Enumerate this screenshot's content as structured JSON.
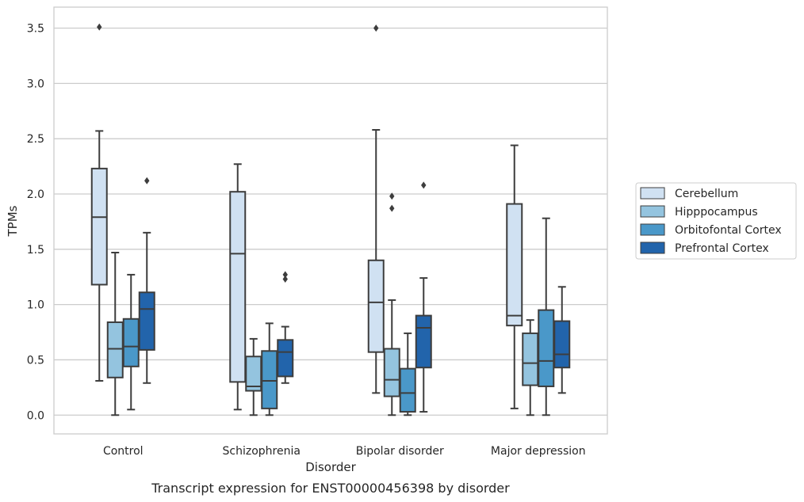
{
  "chart_data": {
    "type": "box",
    "xlabel": "Disorder",
    "ylabel": "TPMs",
    "caption": "Transcript expression for ENST00000456398 by disorder",
    "ylim": [
      -0.17,
      3.69
    ],
    "yticks": [
      "0.0",
      "0.5",
      "1.0",
      "1.5",
      "2.0",
      "2.5",
      "3.0",
      "3.5"
    ],
    "grid": "horizontal",
    "legend_position": "right",
    "categories": [
      "Control",
      "Schizophrenia",
      "Bipolar disorder",
      "Major depression"
    ],
    "series": [
      {
        "name": "Cerebellum",
        "color": "#d0e1f2",
        "boxes": [
          {
            "whisker_low": 0.31,
            "q1": 1.18,
            "median": 1.79,
            "q3": 2.23,
            "whisker_high": 2.57,
            "outliers": [
              3.51
            ]
          },
          {
            "whisker_low": 0.05,
            "q1": 0.3,
            "median": 1.46,
            "q3": 2.02,
            "whisker_high": 2.27,
            "outliers": []
          },
          {
            "whisker_low": 0.2,
            "q1": 0.57,
            "median": 1.02,
            "q3": 1.4,
            "whisker_high": 2.58,
            "outliers": [
              3.5
            ]
          },
          {
            "whisker_low": 0.06,
            "q1": 0.81,
            "median": 0.9,
            "q3": 1.91,
            "whisker_high": 2.44,
            "outliers": []
          }
        ]
      },
      {
        "name": "Hipppocampus",
        "color": "#94c4df",
        "boxes": [
          {
            "whisker_low": 0.0,
            "q1": 0.34,
            "median": 0.6,
            "q3": 0.84,
            "whisker_high": 1.47,
            "outliers": []
          },
          {
            "whisker_low": 0.0,
            "q1": 0.22,
            "median": 0.26,
            "q3": 0.53,
            "whisker_high": 0.69,
            "outliers": []
          },
          {
            "whisker_low": 0.0,
            "q1": 0.17,
            "median": 0.32,
            "q3": 0.6,
            "whisker_high": 1.04,
            "outliers": [
              1.87,
              1.98
            ]
          },
          {
            "whisker_low": 0.0,
            "q1": 0.27,
            "median": 0.47,
            "q3": 0.74,
            "whisker_high": 0.86,
            "outliers": []
          }
        ]
      },
      {
        "name": "Orbitofontal Cortex",
        "color": "#4a98c9",
        "boxes": [
          {
            "whisker_low": 0.05,
            "q1": 0.44,
            "median": 0.62,
            "q3": 0.87,
            "whisker_high": 1.27,
            "outliers": []
          },
          {
            "whisker_low": 0.0,
            "q1": 0.06,
            "median": 0.31,
            "q3": 0.58,
            "whisker_high": 0.83,
            "outliers": []
          },
          {
            "whisker_low": 0.0,
            "q1": 0.03,
            "median": 0.2,
            "q3": 0.42,
            "whisker_high": 0.74,
            "outliers": []
          },
          {
            "whisker_low": 0.0,
            "q1": 0.26,
            "median": 0.49,
            "q3": 0.95,
            "whisker_high": 1.78,
            "outliers": []
          }
        ]
      },
      {
        "name": "Prefrontal Cortex",
        "color": "#2264ab",
        "boxes": [
          {
            "whisker_low": 0.29,
            "q1": 0.59,
            "median": 0.96,
            "q3": 1.11,
            "whisker_high": 1.65,
            "outliers": [
              2.12
            ]
          },
          {
            "whisker_low": 0.29,
            "q1": 0.35,
            "median": 0.57,
            "q3": 0.68,
            "whisker_high": 0.8,
            "outliers": [
              1.23,
              1.27
            ]
          },
          {
            "whisker_low": 0.03,
            "q1": 0.43,
            "median": 0.79,
            "q3": 0.9,
            "whisker_high": 1.24,
            "outliers": [
              2.08
            ]
          },
          {
            "whisker_low": 0.2,
            "q1": 0.43,
            "median": 0.55,
            "q3": 0.85,
            "whisker_high": 1.16,
            "outliers": []
          }
        ]
      }
    ]
  }
}
